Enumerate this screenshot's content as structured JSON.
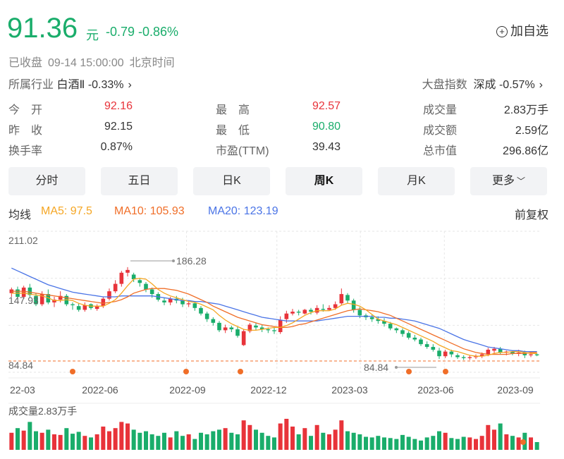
{
  "quote": {
    "price": "91.36",
    "unit": "元",
    "change": "-0.79 -0.86%",
    "add_watch": "加自选",
    "status": "已收盘",
    "datetime": "09-14 15:00:00",
    "timezone": "北京时间"
  },
  "industry": {
    "label": "所属行业",
    "name": "白酒Ⅱ",
    "change": "-0.33%"
  },
  "market_index": {
    "label": "大盘指数",
    "name": "深成",
    "change": "-0.57%"
  },
  "stats": [
    {
      "label": "今　开",
      "value": "92.16",
      "color": "red"
    },
    {
      "label": "最　高",
      "value": "92.57",
      "color": "red"
    },
    {
      "label": "成交量",
      "value": "2.83万手",
      "color": "plain"
    },
    {
      "label": "昨　收",
      "value": "92.15",
      "color": "plain"
    },
    {
      "label": "最　低",
      "value": "90.80",
      "color": "green"
    },
    {
      "label": "成交额",
      "value": "2.59亿",
      "color": "plain"
    },
    {
      "label": "换手率",
      "value": "0.87%",
      "color": "plain"
    },
    {
      "label": "市盈(TTM)",
      "value": "39.43",
      "color": "plain"
    },
    {
      "label": "总市值",
      "value": "296.86亿",
      "color": "plain"
    }
  ],
  "tabs": [
    "分时",
    "五日",
    "日K",
    "周K",
    "月K",
    "更多"
  ],
  "active_tab": "周K",
  "ma_bar": {
    "label": "均线",
    "ma5": "MA5: 97.5",
    "ma10": "MA10: 105.93",
    "ma20": "MA20: 123.19",
    "adjust": "前复权"
  },
  "colors": {
    "up": "#e8333a",
    "down": "#1aad6b",
    "ma5": "#f5a623",
    "ma10": "#f06e28",
    "ma20": "#4a74e6"
  },
  "chart_data": {
    "type": "candlestick",
    "y_labels": [
      "211.02",
      "147.93",
      "84.84"
    ],
    "max_label": "186.28",
    "min_label": "84.84",
    "ylim": [
      84.84,
      211.02
    ],
    "x_ticks": [
      "22-03",
      "2022-06",
      "2022-09",
      "2022-12",
      "2023-03",
      "2023-06",
      "2023-09"
    ],
    "volume_label": "成交量2.83万手",
    "candles": [
      [
        158,
        162,
        154,
        164
      ],
      [
        162,
        154,
        151,
        165
      ],
      [
        154,
        164,
        152,
        166
      ],
      [
        164,
        156,
        153,
        168
      ],
      [
        155,
        146,
        144,
        158
      ],
      [
        146,
        157,
        144,
        160
      ],
      [
        157,
        148,
        146,
        162
      ],
      [
        148,
        151,
        143,
        154
      ],
      [
        151,
        155,
        148,
        160
      ],
      [
        155,
        146,
        144,
        157
      ],
      [
        146,
        145,
        140,
        148
      ],
      [
        144,
        140,
        138,
        147
      ],
      [
        140,
        145,
        138,
        148
      ],
      [
        146,
        142,
        140,
        147
      ],
      [
        141,
        144,
        139,
        146
      ],
      [
        144,
        152,
        142,
        154
      ],
      [
        152,
        160,
        150,
        163
      ],
      [
        160,
        168,
        158,
        172
      ],
      [
        168,
        180,
        165,
        182
      ],
      [
        180,
        183,
        176,
        186
      ],
      [
        178,
        173,
        170,
        180
      ],
      [
        172,
        169,
        165,
        174
      ],
      [
        168,
        162,
        159,
        170
      ],
      [
        162,
        157,
        153,
        164
      ],
      [
        157,
        151,
        149,
        159
      ],
      [
        150,
        148,
        145,
        153
      ],
      [
        148,
        152,
        145,
        154
      ],
      [
        152,
        150,
        147,
        155
      ],
      [
        150,
        146,
        143,
        153
      ],
      [
        146,
        147,
        143,
        150
      ],
      [
        147,
        142,
        139,
        149
      ],
      [
        142,
        136,
        134,
        144
      ],
      [
        136,
        130,
        127,
        138
      ],
      [
        130,
        126,
        123,
        132
      ],
      [
        126,
        118,
        116,
        128
      ],
      [
        118,
        121,
        115,
        124
      ],
      [
        121,
        119,
        116,
        123
      ],
      [
        119,
        112,
        110,
        122
      ],
      [
        102,
        117,
        101,
        119
      ],
      [
        117,
        124,
        115,
        126
      ],
      [
        123,
        121,
        118,
        126
      ],
      [
        121,
        119,
        116,
        124
      ],
      [
        119,
        118,
        115,
        121
      ],
      [
        118,
        117,
        114,
        121
      ],
      [
        116,
        129,
        114,
        133
      ],
      [
        130,
        136,
        126,
        139
      ],
      [
        136,
        138,
        134,
        141
      ],
      [
        138,
        137,
        134,
        140
      ],
      [
        136,
        140,
        135,
        141
      ],
      [
        140,
        138,
        135,
        142
      ],
      [
        137,
        142,
        135,
        145
      ],
      [
        141,
        140,
        138,
        146
      ],
      [
        140,
        142,
        139,
        145
      ],
      [
        142,
        146,
        140,
        149
      ],
      [
        147,
        157,
        145,
        163
      ],
      [
        156,
        150,
        147,
        158
      ],
      [
        150,
        140,
        137,
        152
      ],
      [
        140,
        134,
        131,
        143
      ],
      [
        134,
        132,
        129,
        136
      ],
      [
        132,
        130,
        127,
        135
      ],
      [
        130,
        128,
        125,
        133
      ],
      [
        128,
        125,
        122,
        131
      ],
      [
        125,
        120,
        118,
        127
      ],
      [
        120,
        118,
        115,
        121
      ],
      [
        118,
        114,
        111,
        120
      ],
      [
        115,
        110,
        108,
        117
      ],
      [
        110,
        108,
        106,
        113
      ],
      [
        108,
        103,
        101,
        110
      ],
      [
        103,
        100,
        98,
        106
      ],
      [
        100,
        97,
        95,
        103
      ],
      [
        96,
        90,
        87,
        99
      ],
      [
        90,
        95,
        88,
        97
      ],
      [
        95,
        92,
        89,
        97
      ],
      [
        91,
        89,
        87,
        93
      ],
      [
        89,
        88,
        86,
        91
      ],
      [
        88,
        89,
        86,
        91
      ],
      [
        89,
        90,
        87,
        92
      ],
      [
        90,
        92,
        88,
        94
      ],
      [
        92,
        97,
        90,
        99
      ],
      [
        96,
        98,
        93,
        100
      ],
      [
        98,
        94,
        92,
        100
      ],
      [
        94,
        95,
        91,
        96
      ],
      [
        95,
        93,
        91,
        96
      ],
      [
        93,
        94,
        90,
        97
      ],
      [
        94,
        91,
        88,
        96
      ],
      [
        91,
        92,
        89,
        95
      ],
      [
        92,
        91,
        90,
        93
      ]
    ],
    "ma5": [
      158,
      158,
      158,
      157,
      156,
      155,
      153,
      150,
      150,
      151,
      150,
      147,
      145,
      144,
      144,
      144,
      147,
      151,
      158,
      166,
      173,
      174,
      173,
      168,
      162,
      158,
      155,
      153,
      151,
      149,
      148,
      146,
      143,
      140,
      134,
      129,
      125,
      122,
      119,
      118,
      118,
      119,
      120,
      121,
      121,
      123,
      126,
      130,
      134,
      137,
      139,
      139,
      139,
      141,
      145,
      147,
      146,
      144,
      140,
      135,
      130,
      128,
      126,
      124,
      121,
      118,
      115,
      112,
      109,
      106,
      102,
      99,
      96,
      95,
      93,
      91,
      90,
      90,
      91,
      93,
      94,
      94,
      95,
      95,
      94,
      93,
      93
    ],
    "ma10": [
      160,
      160,
      160,
      159,
      158,
      157,
      156,
      155,
      154,
      153,
      152,
      151,
      150,
      149,
      148,
      147,
      148,
      149,
      151,
      154,
      158,
      160,
      162,
      163,
      163,
      163,
      162,
      161,
      159,
      157,
      154,
      151,
      148,
      144,
      141,
      138,
      135,
      132,
      130,
      128,
      126,
      124,
      123,
      122,
      121,
      121,
      122,
      124,
      125,
      127,
      129,
      131,
      133,
      135,
      137,
      139,
      140,
      141,
      140,
      139,
      138,
      136,
      134,
      131,
      128,
      125,
      122,
      119,
      116,
      113,
      110,
      107,
      104,
      101,
      98,
      96,
      94,
      93,
      92,
      92,
      92,
      92,
      93,
      93,
      93,
      94,
      94
    ],
    "ma20": [
      185,
      182,
      179,
      176,
      173,
      170,
      167,
      165,
      163,
      161,
      159,
      158,
      157,
      156,
      155,
      154,
      154,
      154,
      155,
      155,
      155,
      155,
      155,
      155,
      154,
      153,
      152,
      151,
      150,
      150,
      149,
      149,
      148,
      147,
      146,
      144,
      142,
      140,
      138,
      136,
      134,
      132,
      131,
      130,
      129,
      128,
      128,
      128,
      128,
      128,
      128,
      129,
      130,
      131,
      132,
      133,
      133,
      133,
      133,
      133,
      132,
      132,
      131,
      131,
      130,
      129,
      128,
      126,
      124,
      122,
      120,
      117,
      114,
      111,
      108,
      106,
      104,
      102,
      100,
      99,
      98,
      97,
      96,
      96,
      95,
      95,
      95
    ],
    "volumes": [
      0.55,
      0.7,
      0.62,
      0.9,
      0.6,
      0.55,
      0.65,
      0.5,
      0.48,
      0.7,
      0.52,
      0.58,
      0.45,
      0.4,
      0.5,
      0.75,
      0.6,
      0.7,
      0.9,
      0.85,
      0.65,
      0.55,
      0.6,
      0.5,
      0.45,
      0.55,
      0.4,
      0.6,
      0.45,
      0.5,
      0.35,
      0.55,
      0.5,
      0.6,
      0.65,
      0.7,
      0.55,
      0.5,
      0.95,
      0.8,
      0.65,
      0.55,
      0.45,
      0.4,
      0.85,
      1.0,
      0.75,
      0.5,
      0.7,
      0.45,
      0.8,
      0.55,
      0.5,
      0.65,
      0.95,
      0.6,
      0.55,
      0.5,
      0.42,
      0.4,
      0.45,
      0.4,
      0.38,
      0.35,
      0.48,
      0.42,
      0.35,
      0.3,
      0.4,
      0.45,
      0.6,
      0.55,
      0.38,
      0.35,
      0.42,
      0.4,
      0.35,
      0.45,
      0.8,
      0.65,
      0.85,
      0.5,
      0.45,
      0.4,
      0.55,
      0.4,
      0.25
    ]
  }
}
